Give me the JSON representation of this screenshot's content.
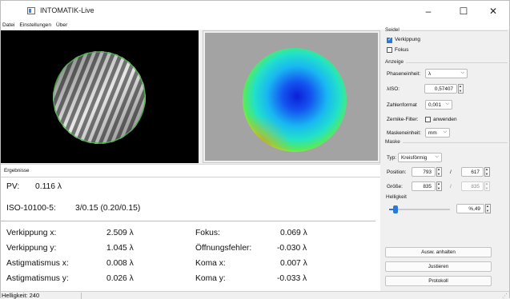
{
  "window": {
    "title": "INTOMATIK-Live",
    "minimize_glyph": "–",
    "maximize_glyph": "☐",
    "close_glyph": "✕"
  },
  "menu": [
    "Datei",
    "Einstellungen",
    "Über"
  ],
  "results": {
    "tab_label": "Ergebnisse",
    "pv_label": "PV:",
    "pv_value": "0.116 λ",
    "iso_label": "ISO-10100-5:",
    "iso_value": "3/0.15 (0.20/0.15)",
    "left_rows": [
      {
        "label": "Verkippung x:",
        "value": "2.509 λ"
      },
      {
        "label": "Verkippung y:",
        "value": "1.045 λ"
      },
      {
        "label": "Astigmatismus x:",
        "value": "0.008 λ"
      },
      {
        "label": "Astigmatismus y:",
        "value": "0.026 λ"
      }
    ],
    "right_rows": [
      {
        "label": "Fokus:",
        "value": "0.069 λ"
      },
      {
        "label": "Öffnungsfehler:",
        "value": "-0.030 λ"
      },
      {
        "label": "Koma x:",
        "value": "0.007 λ"
      },
      {
        "label": "Koma y:",
        "value": "-0.033 λ"
      }
    ]
  },
  "panel": {
    "seidel": {
      "title": "Seidel",
      "verkippung_label": "Verkippung",
      "verkippung_checked": true,
      "fokus_label": "Fokus",
      "fokus_checked": false
    },
    "anzeige": {
      "title": "Anzeige",
      "phaseneinheit_label": "Phaseneinheit:",
      "phaseneinheit_value": "λ",
      "xiso_label": "λISO:",
      "xiso_value": "0,57407",
      "zahlenformat_label": "Zahlenformat",
      "zahlenformat_value": "0,001",
      "zernike_label": "Zernike-Filter:",
      "anwenden_label": "anwenden",
      "anwenden_checked": false,
      "maskeneinheit_label": "Maskeneinheit:",
      "maskeneinheit_value": "mm"
    },
    "maske": {
      "title": "Maske",
      "typ_label": "Typ:",
      "typ_value": "Kreisförmig",
      "position_label": "Position:",
      "position_x": "793",
      "position_y": "617",
      "groesse_label": "Größe:",
      "groesse_x": "835",
      "groesse_y": "835",
      "divider": "/"
    },
    "helligkeit": {
      "title": "Helligkeit",
      "level_fraction": 0.06,
      "value": "%,49"
    }
  },
  "buttons": {
    "auswertung": "Ausw. anhalten",
    "justieren": "Justieren",
    "protokoll": "Protokoll"
  },
  "status": {
    "text": "Helligkeit: 240",
    "grip": "⋰"
  },
  "colors": {
    "accent": "#2b78d6",
    "title_bg": "#ffffff",
    "pane_left_bg": "#000000",
    "pane_right_bg": "#a3a3a3"
  }
}
